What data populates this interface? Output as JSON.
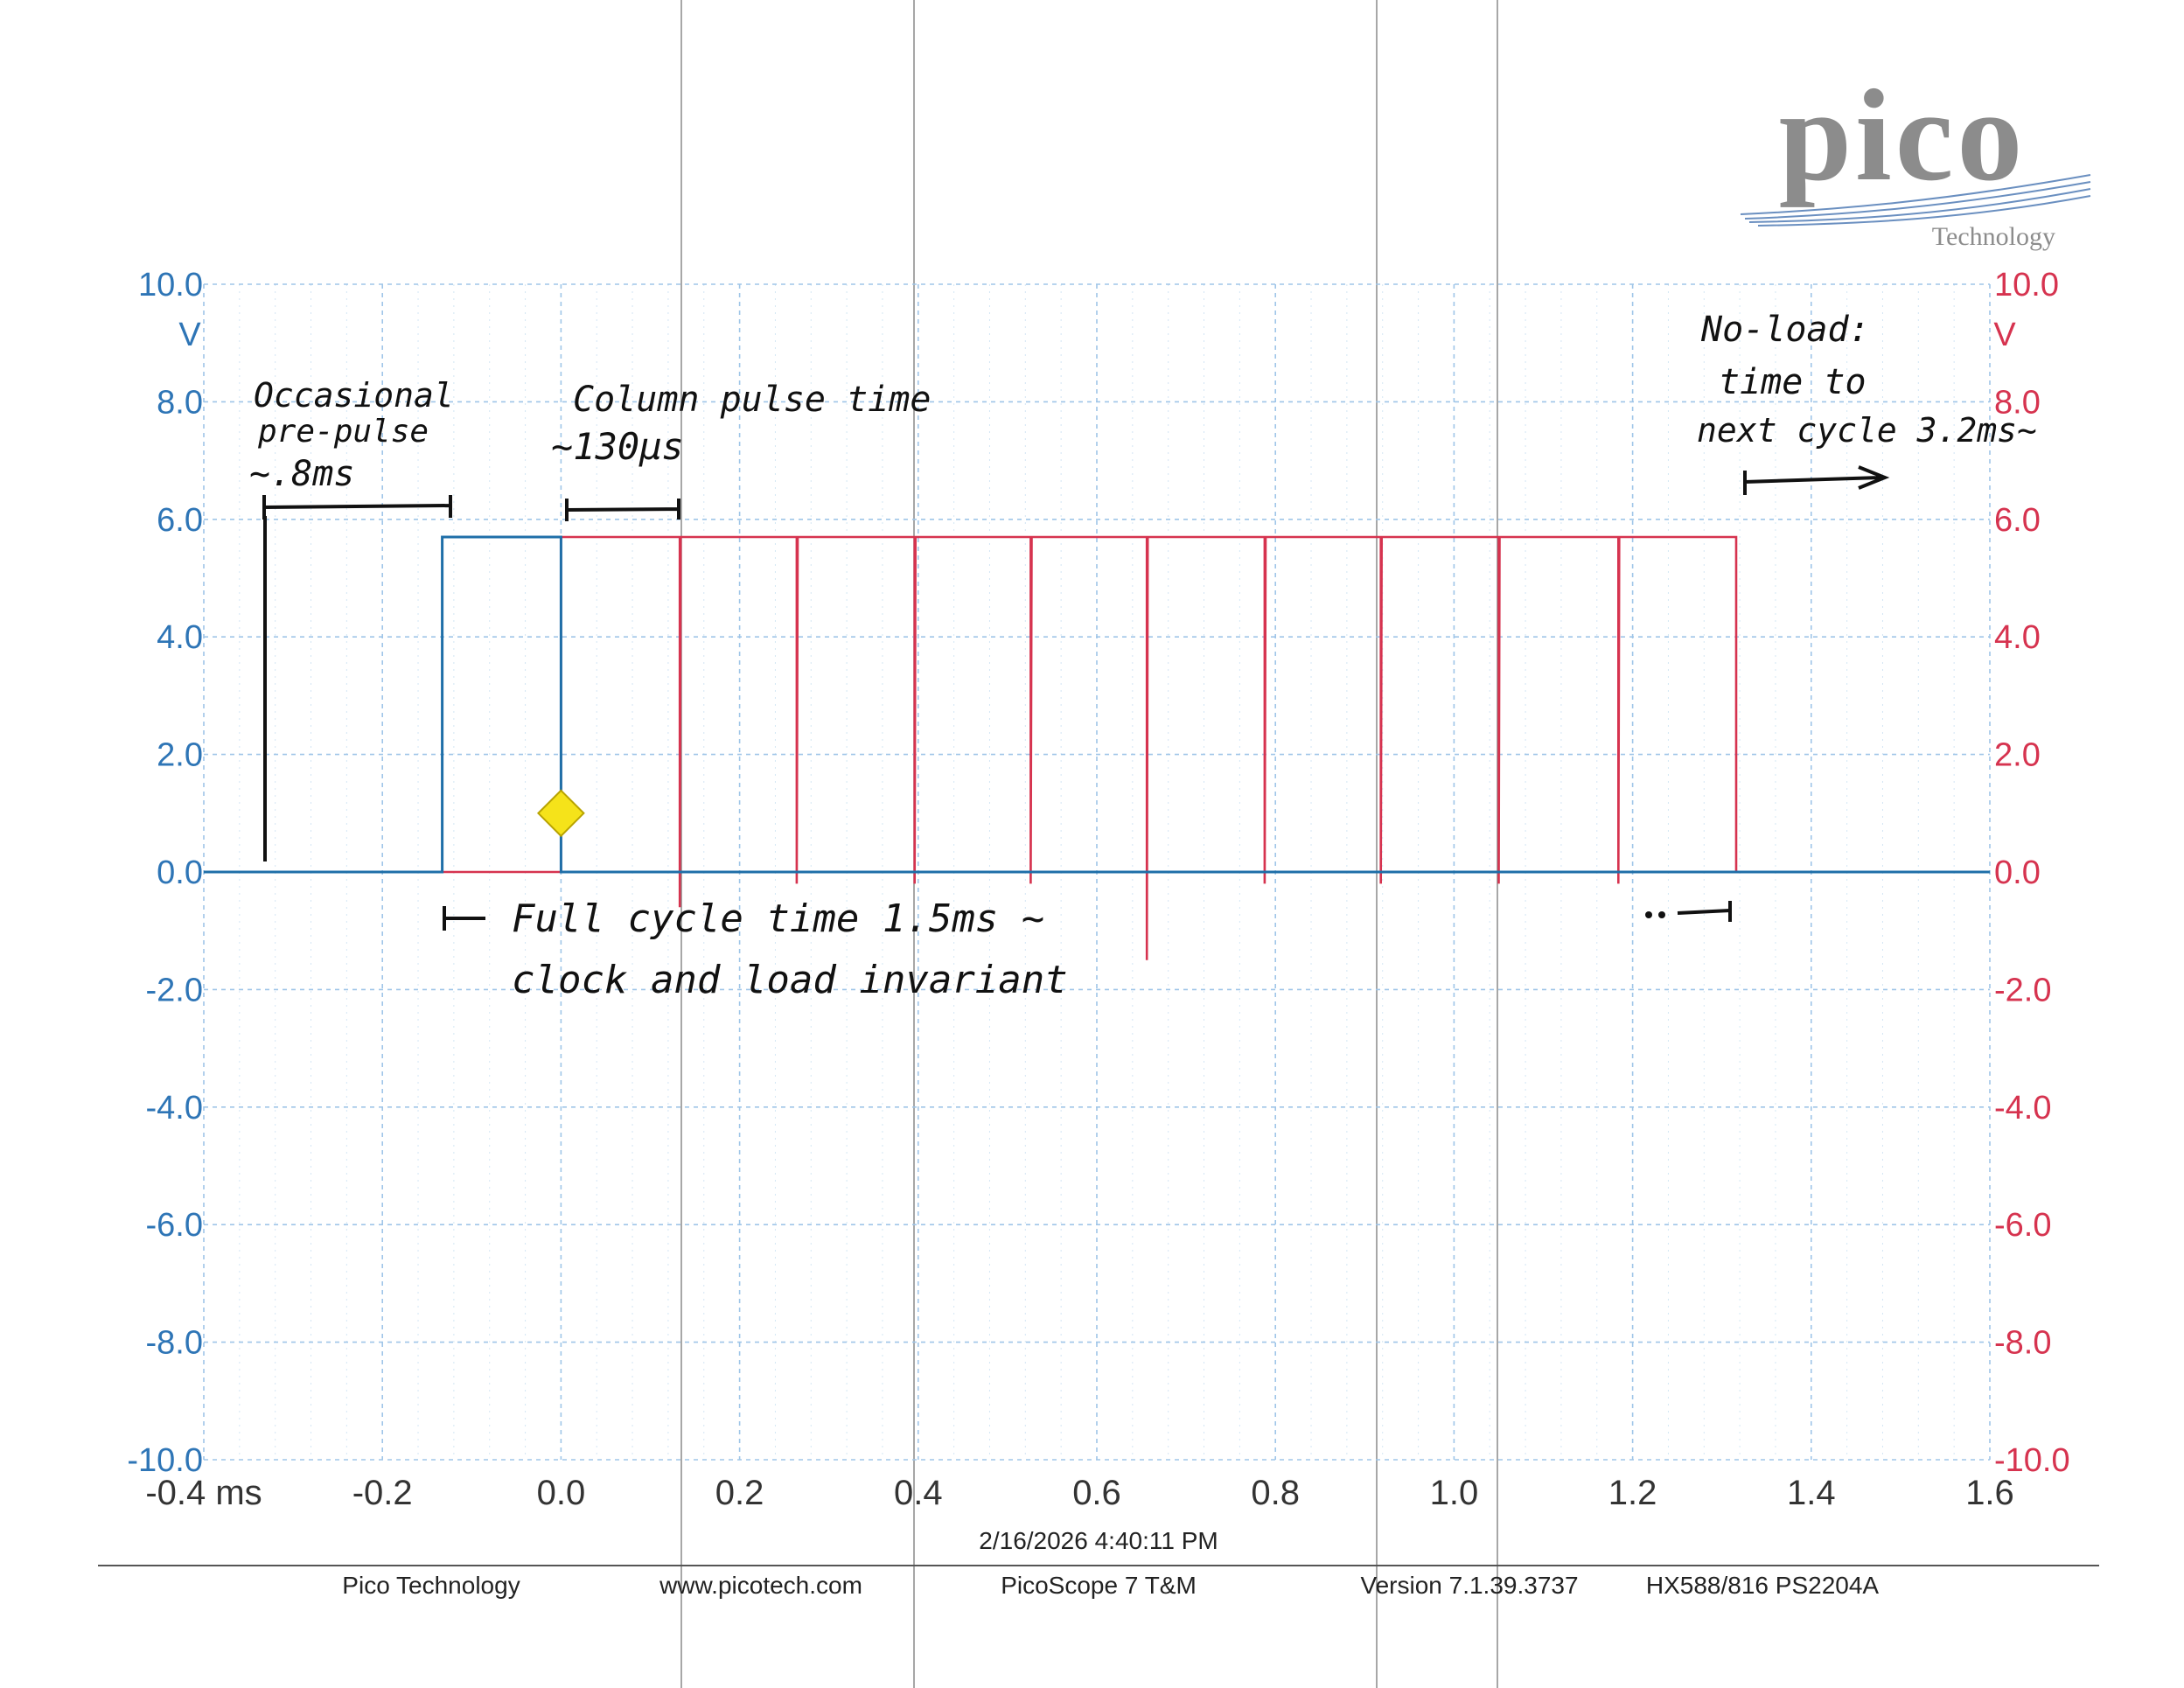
{
  "logo": {
    "wordmark": "pico",
    "tagline": "Technology"
  },
  "chart_data": {
    "type": "line",
    "x_axis": {
      "range": [
        -0.4,
        1.6
      ],
      "unit": "ms",
      "ticks": [
        -0.4,
        -0.2,
        0.0,
        0.2,
        0.4,
        0.6,
        0.8,
        1.0,
        1.2,
        1.4,
        1.6
      ],
      "tick_labels": [
        "-0.4 ms",
        "-0.2",
        "0.0",
        "0.2",
        "0.4",
        "0.6",
        "0.8",
        "1.0",
        "1.2",
        "1.4",
        "1.6"
      ]
    },
    "y_left": {
      "range": [
        -10,
        10
      ],
      "unit": "V",
      "color": "#2e75b6",
      "tick_labels": [
        "10.0",
        "8.0",
        "6.0",
        "4.0",
        "2.0",
        "0.0",
        "-2.0",
        "-4.0",
        "-6.0",
        "-8.0",
        "-10.0"
      ]
    },
    "y_right": {
      "range": [
        -10,
        10
      ],
      "unit": "V",
      "color": "#d6334f",
      "tick_labels": [
        "10.0",
        "8.0",
        "6.0",
        "4.0",
        "2.0",
        "0.0",
        "-2.0",
        "-4.0",
        "-6.0",
        "-8.0",
        "-10.0"
      ]
    },
    "grid": true,
    "series": [
      {
        "color": "#1f6fa8",
        "points": [
          [
            -0.4,
            0.0
          ],
          [
            -0.133,
            0.0
          ],
          [
            -0.133,
            5.7
          ],
          [
            0.0,
            5.7
          ],
          [
            0.0,
            0.0
          ],
          [
            1.6,
            0.0
          ]
        ]
      },
      {
        "color": "#d6334f",
        "points": [
          [
            -0.4,
            0.0
          ],
          [
            0.0,
            0.0
          ],
          [
            0.0,
            5.7
          ],
          [
            0.133,
            5.7
          ],
          [
            0.133,
            -0.6
          ],
          [
            0.134,
            5.7
          ],
          [
            0.264,
            5.7
          ],
          [
            0.264,
            -0.2
          ],
          [
            0.265,
            5.7
          ],
          [
            0.396,
            5.7
          ],
          [
            0.396,
            -0.2
          ],
          [
            0.397,
            5.7
          ],
          [
            0.526,
            5.7
          ],
          [
            0.526,
            -0.2
          ],
          [
            0.527,
            5.7
          ],
          [
            0.656,
            5.7
          ],
          [
            0.656,
            -1.5
          ],
          [
            0.657,
            5.7
          ],
          [
            0.788,
            5.7
          ],
          [
            0.788,
            -0.2
          ],
          [
            0.789,
            5.7
          ],
          [
            0.918,
            5.7
          ],
          [
            0.918,
            -0.2
          ],
          [
            0.919,
            5.7
          ],
          [
            1.05,
            5.7
          ],
          [
            1.05,
            -0.2
          ],
          [
            1.051,
            5.7
          ],
          [
            1.184,
            5.7
          ],
          [
            1.184,
            -0.2
          ],
          [
            1.185,
            5.7
          ],
          [
            1.316,
            5.7
          ],
          [
            1.316,
            0.0
          ],
          [
            1.6,
            0.0
          ]
        ]
      }
    ],
    "trigger": {
      "x": 0.0,
      "y": 1.0,
      "color": "#f5e31a"
    },
    "annotations": [
      {
        "lines": [
          "Occasional",
          "pre-pulse",
          "~.8ms"
        ]
      },
      {
        "lines": [
          "Column pulse time",
          "~130μs"
        ]
      },
      {
        "lines": [
          "Full cycle time 1.5ms ~",
          "clock and load invariant"
        ]
      },
      {
        "lines": [
          "No-load:",
          "time to",
          "next cycle 3.2ms~"
        ]
      }
    ]
  },
  "footer": {
    "timestamp": "2/16/2026 4:40:11 PM",
    "company": "Pico Technology",
    "website": "www.picotech.com",
    "product": "PicoScope 7 T&M",
    "version": "Version 7.1.39.3737",
    "device": "HX588/816 PS2204A"
  }
}
